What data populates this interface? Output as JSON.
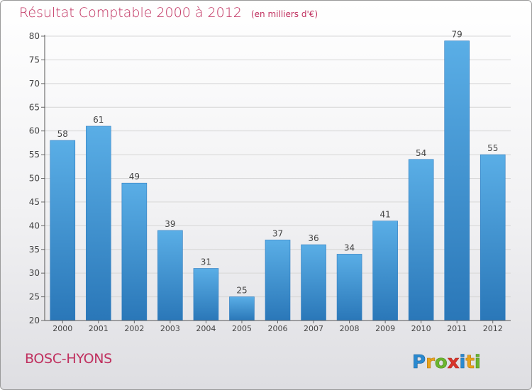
{
  "title": "Résultat Comptable 2000 à 2012",
  "subtitle": "(en milliers d'€)",
  "commune": "BOSC-HYONS",
  "logo_text": "Proxiti",
  "colors": {
    "title": "#c0305f",
    "bar_top": "#5aaee6",
    "bar_bottom": "#2a77b8",
    "grid": "#d6d6d6"
  },
  "chart_data": {
    "type": "bar",
    "categories": [
      "2000",
      "2001",
      "2002",
      "2003",
      "2004",
      "2005",
      "2006",
      "2007",
      "2008",
      "2009",
      "2010",
      "2011",
      "2012"
    ],
    "values": [
      58,
      61,
      49,
      39,
      31,
      25,
      37,
      36,
      34,
      41,
      54,
      79,
      55
    ],
    "title": "Résultat Comptable 2000 à 2012",
    "subtitle": "(en milliers d'€)",
    "ylim": [
      20,
      80
    ],
    "yticks": [
      20,
      25,
      30,
      35,
      40,
      45,
      50,
      55,
      60,
      65,
      70,
      75,
      80
    ],
    "grid": true,
    "data_labels": true,
    "legend": "none"
  }
}
